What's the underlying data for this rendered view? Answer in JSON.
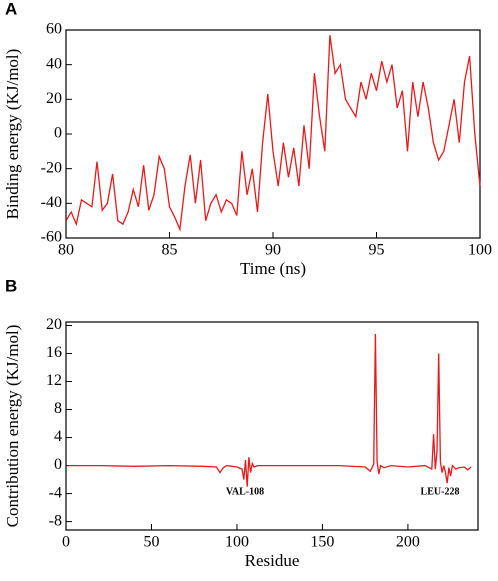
{
  "chart_data": [
    {
      "type": "line",
      "label": "A",
      "xlabel": "Time (ns)",
      "ylabel": "Binding energy (KJ/mol)",
      "color": "#e41a1c",
      "xlim": [
        80,
        100
      ],
      "ylim": [
        -60,
        60
      ],
      "xticks": [
        80,
        85,
        90,
        95,
        100
      ],
      "yticks": [
        -60,
        -40,
        -20,
        0,
        20,
        40,
        60
      ],
      "x": [
        80,
        80.25,
        80.5,
        80.75,
        81,
        81.25,
        81.5,
        81.75,
        82,
        82.25,
        82.5,
        82.75,
        83,
        83.25,
        83.5,
        83.75,
        84,
        84.25,
        84.5,
        84.75,
        85,
        85.25,
        85.5,
        85.75,
        86,
        86.25,
        86.5,
        86.75,
        87,
        87.25,
        87.5,
        87.75,
        88,
        88.25,
        88.5,
        88.75,
        89,
        89.25,
        89.5,
        89.75,
        90,
        90.25,
        90.5,
        90.75,
        91,
        91.25,
        91.5,
        91.75,
        92,
        92.25,
        92.5,
        92.75,
        93,
        93.25,
        93.5,
        93.75,
        94,
        94.25,
        94.5,
        94.75,
        95,
        95.25,
        95.5,
        95.75,
        96,
        96.25,
        96.5,
        96.75,
        97,
        97.25,
        97.5,
        97.75,
        98,
        98.25,
        98.5,
        98.75,
        99,
        99.25,
        99.5,
        99.75,
        100
      ],
      "values": [
        -50,
        -45,
        -52,
        -38,
        -40,
        -42,
        -16,
        -44,
        -40,
        -23,
        -50,
        -52,
        -45,
        -32,
        -42,
        -18,
        -44,
        -35,
        -13,
        -20,
        -42,
        -48,
        -55,
        -30,
        -12,
        -40,
        -15,
        -50,
        -40,
        -35,
        -45,
        -38,
        -40,
        -47,
        -10,
        -35,
        -20,
        -45,
        -5,
        23,
        -10,
        -30,
        -5,
        -25,
        -8,
        -30,
        5,
        -20,
        35,
        10,
        -10,
        57,
        35,
        40,
        20,
        15,
        10,
        30,
        20,
        35,
        25,
        42,
        30,
        40,
        15,
        25,
        -10,
        30,
        10,
        30,
        15,
        -5,
        -15,
        -10,
        5,
        20,
        -5,
        30,
        45,
        0,
        -30
      ],
      "annotations": []
    },
    {
      "type": "line",
      "label": "B",
      "xlabel": "Residue",
      "ylabel": "Contribution energy (KJ/mol)",
      "color": "#e41a1c",
      "xlim": [
        0,
        241
      ],
      "ylim": [
        -9.2,
        20.5
      ],
      "xticks": [
        0,
        50,
        100,
        150,
        200
      ],
      "yticks": [
        -8,
        -4,
        0,
        4,
        8,
        12,
        16,
        20
      ],
      "x": [
        1,
        20,
        40,
        60,
        80,
        88,
        90,
        92,
        94,
        100,
        103,
        104,
        105,
        106,
        107,
        108,
        109,
        110,
        112,
        120,
        140,
        160,
        175,
        178,
        180,
        181,
        182,
        183,
        184,
        186,
        190,
        200,
        210,
        214,
        215,
        216,
        217,
        218,
        219,
        220,
        221,
        222,
        223,
        224,
        225,
        226,
        228,
        230,
        233,
        235,
        237
      ],
      "values": [
        0,
        0,
        -0.1,
        0,
        -0.1,
        -0.2,
        -1,
        -0.3,
        0,
        -0.2,
        -0.5,
        -2,
        0.8,
        -3,
        1.2,
        -1,
        0.3,
        -0.2,
        0,
        0,
        0,
        0,
        -0.2,
        -0.8,
        0.2,
        18.8,
        0.5,
        -1.2,
        0,
        -0.3,
        0,
        -0.2,
        0,
        -0.5,
        4.5,
        -0.5,
        2,
        16,
        0.5,
        -1,
        0,
        -1,
        -2.5,
        -0.3,
        -1.5,
        0,
        -0.5,
        -0.3,
        -0.2,
        -0.6,
        -0.2
      ],
      "annotations": [
        "VAL-108",
        "LEU-228"
      ]
    }
  ]
}
